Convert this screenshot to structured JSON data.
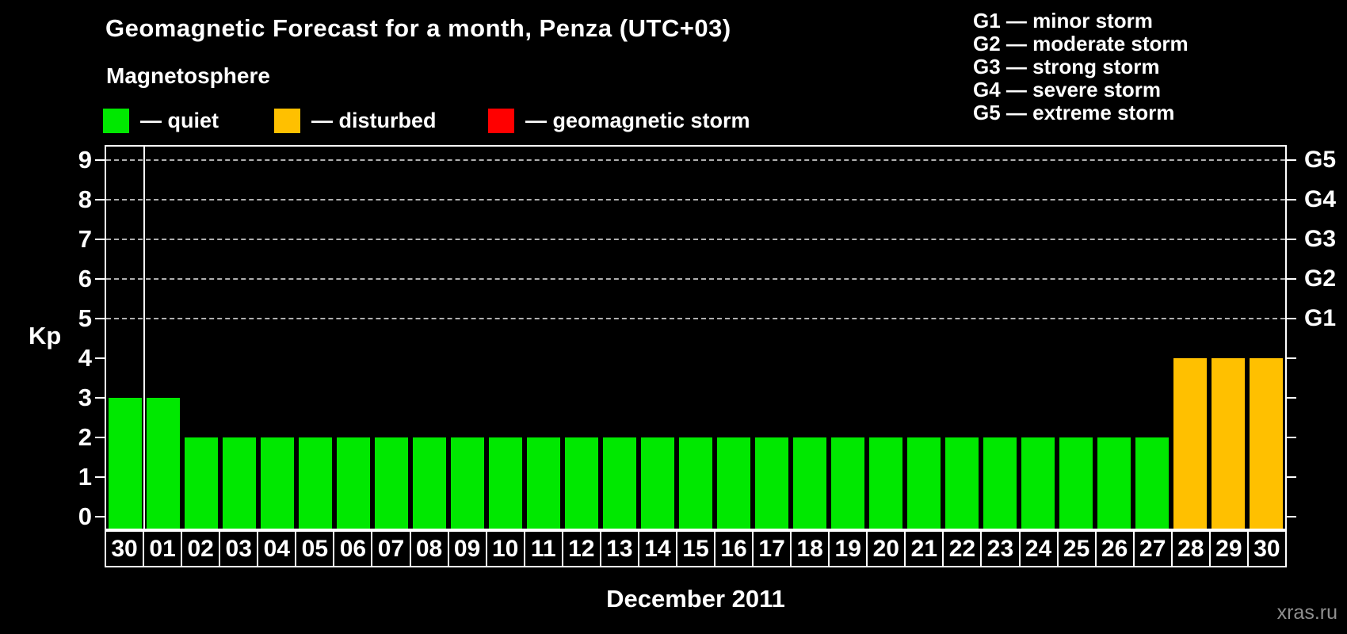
{
  "header": {
    "title": "Geomagnetic Forecast for a month, Penza (UTC+03)",
    "subtitle": "Magnetosphere"
  },
  "legend": {
    "items": [
      {
        "key": "quiet",
        "label": "— quiet",
        "color": "#00e800"
      },
      {
        "key": "disturbed",
        "label": "— disturbed",
        "color": "#ffc000"
      },
      {
        "key": "storm",
        "label": "— geomagnetic storm",
        "color": "#ff0000"
      }
    ]
  },
  "storm_scale_legend": [
    "G1 — minor storm",
    "G2 — moderate storm",
    "G3 — strong storm",
    "G4 — severe storm",
    "G5 — extreme storm"
  ],
  "chart_data": {
    "type": "bar",
    "title": "Geomagnetic Forecast for a month, Penza (UTC+03)",
    "xlabel": "December 2011",
    "ylabel": "Kp",
    "ylim": [
      0,
      9
    ],
    "y_ticks": [
      0,
      1,
      2,
      3,
      4,
      5,
      6,
      7,
      8,
      9
    ],
    "gridlines_kp": [
      5,
      6,
      7,
      8,
      9
    ],
    "grid": "dashed horizontal lines at Kp 5-9 only",
    "legend_position": "top",
    "right_axis": [
      {
        "kp": 5,
        "label": "G1"
      },
      {
        "kp": 6,
        "label": "G2"
      },
      {
        "kp": 7,
        "label": "G3"
      },
      {
        "kp": 8,
        "label": "G4"
      },
      {
        "kp": 9,
        "label": "G5"
      }
    ],
    "categories": [
      "30",
      "01",
      "02",
      "03",
      "04",
      "05",
      "06",
      "07",
      "08",
      "09",
      "10",
      "11",
      "12",
      "13",
      "14",
      "15",
      "16",
      "17",
      "18",
      "19",
      "20",
      "21",
      "22",
      "23",
      "24",
      "25",
      "26",
      "27",
      "28",
      "29",
      "30"
    ],
    "values": [
      3,
      3,
      2,
      2,
      2,
      2,
      2,
      2,
      2,
      2,
      2,
      2,
      2,
      2,
      2,
      2,
      2,
      2,
      2,
      2,
      2,
      2,
      2,
      2,
      2,
      2,
      2,
      2,
      4,
      4,
      4
    ],
    "states": [
      "quiet",
      "quiet",
      "quiet",
      "quiet",
      "quiet",
      "quiet",
      "quiet",
      "quiet",
      "quiet",
      "quiet",
      "quiet",
      "quiet",
      "quiet",
      "quiet",
      "quiet",
      "quiet",
      "quiet",
      "quiet",
      "quiet",
      "quiet",
      "quiet",
      "quiet",
      "quiet",
      "quiet",
      "quiet",
      "quiet",
      "quiet",
      "quiet",
      "disturbed",
      "disturbed",
      "disturbed"
    ],
    "month_separator_after_index": 0
  },
  "footer": {
    "xlabel": "December 2011",
    "watermark": "xras.ru"
  },
  "colors": {
    "background": "#000000",
    "axis": "#ffffff",
    "gridline": "#b0b0b0",
    "watermark": "#8f8f8f"
  }
}
